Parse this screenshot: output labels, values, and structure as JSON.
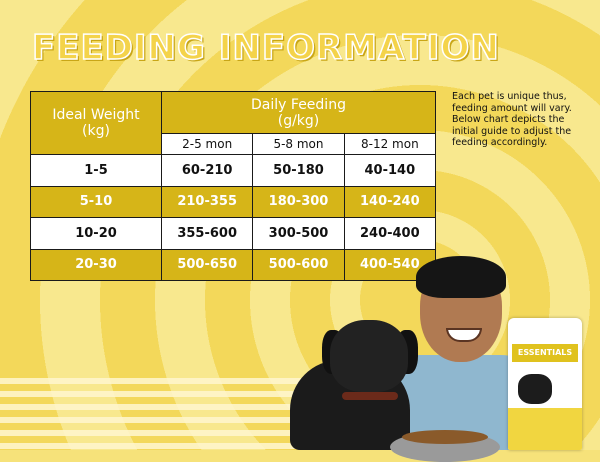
{
  "title": "FEEDING INFORMATION",
  "table": {
    "header_weight": "Ideal Weight",
    "header_weight_unit": "(kg)",
    "header_daily": "Daily Feeding",
    "header_daily_unit": "(g/kg)",
    "age_columns": [
      "2-5 mon",
      "5-8 mon",
      "8-12 mon"
    ],
    "rows": [
      {
        "weight": "1-5",
        "values": [
          "60-210",
          "50-180",
          "40-140"
        ]
      },
      {
        "weight": "5-10",
        "values": [
          "210-355",
          "180-300",
          "140-240"
        ]
      },
      {
        "weight": "10-20",
        "values": [
          "355-600",
          "300-500",
          "240-400"
        ]
      },
      {
        "weight": "20-30",
        "values": [
          "500-650",
          "500-600",
          "400-540"
        ]
      }
    ]
  },
  "note": "Each pet is unique thus, feeding amount will vary. Below chart depicts the initial guide to adjust the feeding accordingly.",
  "bag_label": "ESSENTIALS",
  "colors": {
    "gold": "#d6b518",
    "background": "#f6e27a"
  }
}
